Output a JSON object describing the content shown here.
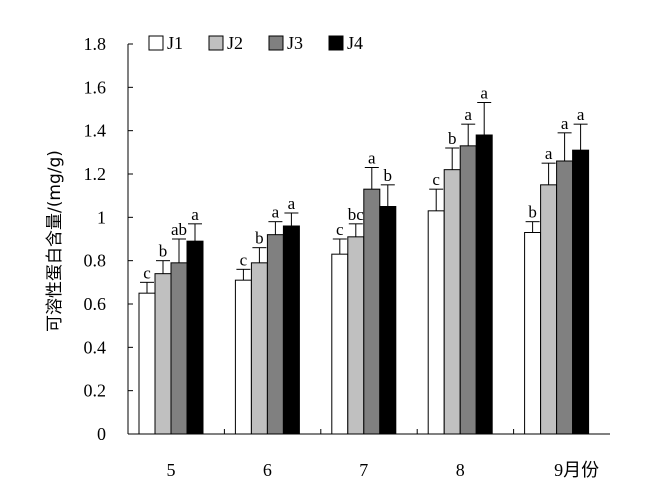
{
  "chart_data": {
    "type": "bar",
    "ylabel": "可溶性蛋白含量/(mg/g)",
    "xlabel": "",
    "categories": [
      "5",
      "6",
      "7",
      "8",
      "9月份"
    ],
    "ylim": [
      0,
      1.8
    ],
    "yticks": [
      "0",
      "0.2",
      "0.4",
      "0.6",
      "0.8",
      "1",
      "1.2",
      "1.4",
      "1.6",
      "1.8"
    ],
    "legend_position": "top-left",
    "grid": false,
    "series": [
      {
        "name": "J1",
        "color": "#ffffff",
        "values": [
          0.65,
          0.71,
          0.83,
          1.03,
          0.93
        ],
        "errors": [
          0.05,
          0.05,
          0.07,
          0.1,
          0.05
        ],
        "labels": [
          "c",
          "c",
          "c",
          "c",
          "b"
        ]
      },
      {
        "name": "J2",
        "color": "#c0c0c0",
        "values": [
          0.74,
          0.79,
          0.91,
          1.22,
          1.15
        ],
        "errors": [
          0.06,
          0.07,
          0.06,
          0.1,
          0.1
        ],
        "labels": [
          "b",
          "b",
          "bc",
          "b",
          "a"
        ]
      },
      {
        "name": "J3",
        "color": "#808080",
        "values": [
          0.79,
          0.92,
          1.13,
          1.33,
          1.26
        ],
        "errors": [
          0.11,
          0.06,
          0.1,
          0.1,
          0.13
        ],
        "labels": [
          "ab",
          "a",
          "a",
          "a",
          "a"
        ]
      },
      {
        "name": "J4",
        "color": "#000000",
        "values": [
          0.89,
          0.96,
          1.05,
          1.38,
          1.31
        ],
        "errors": [
          0.08,
          0.06,
          0.1,
          0.15,
          0.12
        ],
        "labels": [
          "a",
          "a",
          "b",
          "a",
          "a"
        ]
      }
    ]
  }
}
